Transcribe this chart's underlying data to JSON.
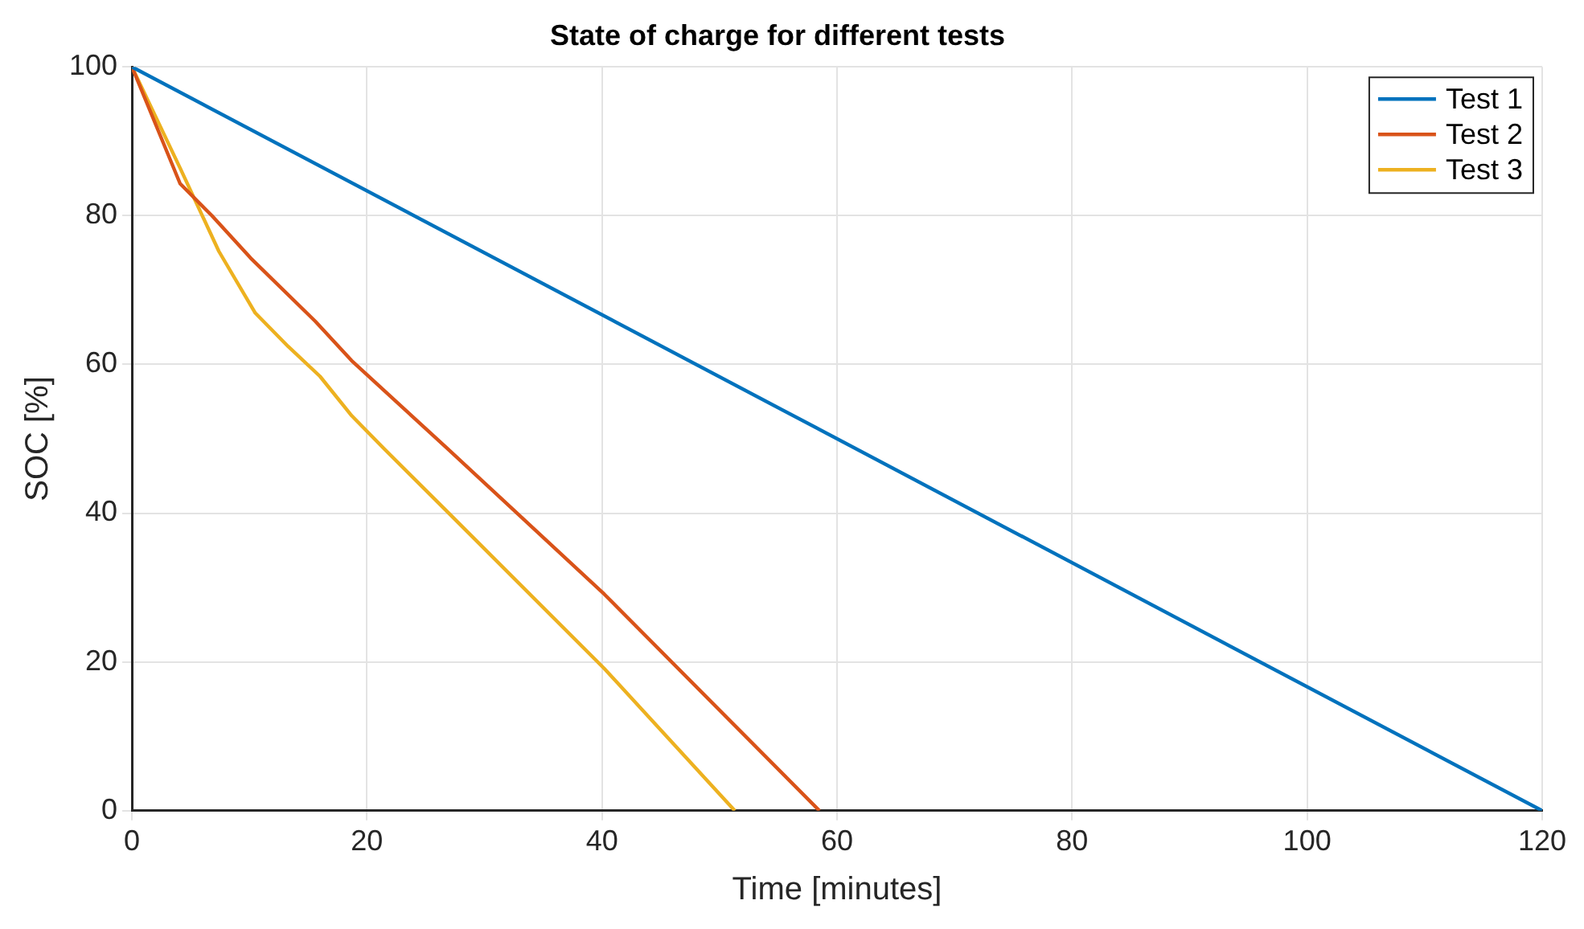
{
  "chart_data": {
    "type": "line",
    "title": "State of charge for different tests",
    "xlabel": "Time [minutes]",
    "ylabel": "SOC [%]",
    "xlim": [
      0,
      120
    ],
    "xticks": [
      0,
      20,
      40,
      60,
      80,
      100,
      120
    ],
    "ylim": [
      0,
      100
    ],
    "yticks": [
      0,
      20,
      40,
      60,
      80,
      100
    ],
    "grid": true,
    "legend": "top right",
    "marker": "none",
    "line_style": "solid",
    "series": [
      {
        "name": "Test 1",
        "color": "#0072bd",
        "x": [
          0,
          120
        ],
        "values": [
          100,
          0
        ]
      },
      {
        "name": "Test 2",
        "color": "#d95319",
        "x": [
          0,
          4.1,
          6.8,
          10.1,
          15.6,
          18.7,
          26.9,
          40.2,
          58.5
        ],
        "values": [
          100,
          84.3,
          80,
          74.3,
          65.8,
          60.5,
          48.6,
          29.1,
          0
        ]
      },
      {
        "name": "Test 3",
        "color": "#edb120",
        "x": [
          0,
          4.1,
          7.4,
          10.5,
          13.3,
          16,
          18.7,
          21.5,
          26.9,
          40.2,
          51.3
        ],
        "values": [
          100,
          86.4,
          75.2,
          66.9,
          62.4,
          58.4,
          53.1,
          48.6,
          40.1,
          19.1,
          0
        ]
      }
    ]
  }
}
